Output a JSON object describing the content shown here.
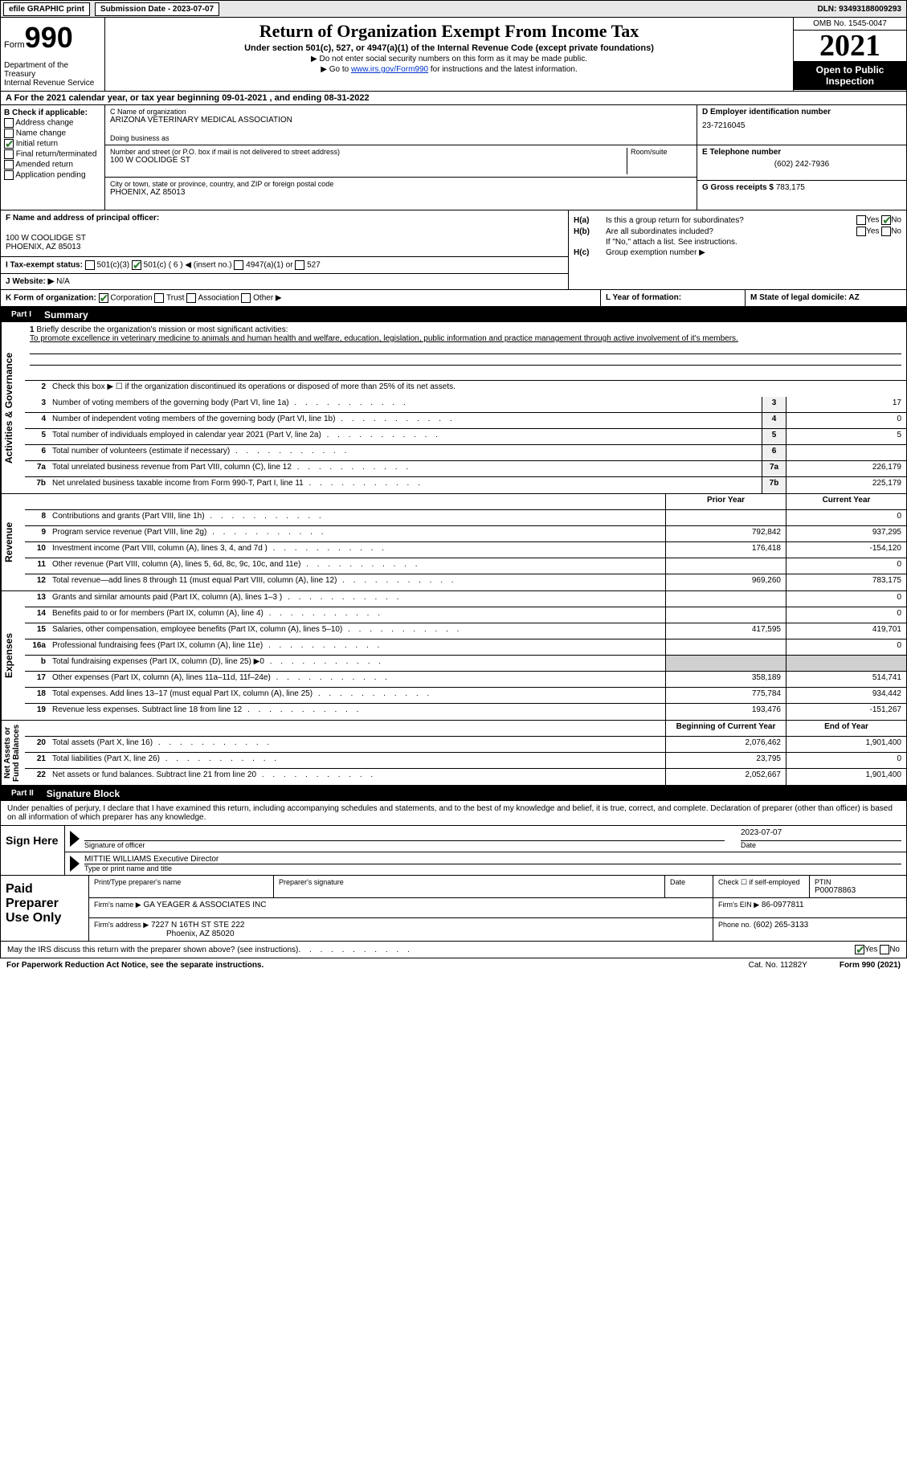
{
  "topbar": {
    "efile": "efile GRAPHIC print",
    "submission": "Submission Date - 2023-07-07",
    "dln": "DLN: 93493188009293"
  },
  "header": {
    "form_word": "Form",
    "form_no": "990",
    "dept": "Department of the Treasury\nInternal Revenue Service",
    "title": "Return of Organization Exempt From Income Tax",
    "subtitle": "Under section 501(c), 527, or 4947(a)(1) of the Internal Revenue Code (except private foundations)",
    "line1": "▶ Do not enter social security numbers on this form as it may be made public.",
    "line2_pre": "▶ Go to ",
    "line2_link": "www.irs.gov/Form990",
    "line2_post": " for instructions and the latest information.",
    "omb": "OMB No. 1545-0047",
    "year": "2021",
    "otp": "Open to Public Inspection"
  },
  "a": {
    "text": "A For the 2021 calendar year, or tax year beginning 09-01-2021   , and ending 08-31-2022"
  },
  "b": {
    "label": "B Check if applicable:",
    "opts": [
      "Address change",
      "Name change",
      "Initial return",
      "Final return/terminated",
      "Amended return",
      "Application pending"
    ],
    "checked_idx": 2
  },
  "c": {
    "name_lbl": "C Name of organization",
    "name": "ARIZONA VETERINARY MEDICAL ASSOCIATION",
    "dba_lbl": "Doing business as",
    "dba": "",
    "addr_lbl": "Number and street (or P.O. box if mail is not delivered to street address)",
    "room_lbl": "Room/suite",
    "addr": "100 W COOLIDGE ST",
    "city_lbl": "City or town, state or province, country, and ZIP or foreign postal code",
    "city": "PHOENIX, AZ  85013"
  },
  "d": {
    "ein_lbl": "D Employer identification number",
    "ein": "23-7216045",
    "tel_lbl": "E Telephone number",
    "tel": "(602) 242-7936",
    "gross_lbl": "G Gross receipts $",
    "gross": "783,175"
  },
  "f": {
    "lbl": "F Name and address of principal officer:",
    "line1": "100 W COOLIDGE ST",
    "line2": "PHOENIX, AZ  85013"
  },
  "h": {
    "a_lbl": "H(a)",
    "a_text": "Is this a group return for subordinates?",
    "b_lbl": "H(b)",
    "b_text": "Are all subordinates included?",
    "note": "If \"No,\" attach a list. See instructions.",
    "c_lbl": "H(c)",
    "c_text": "Group exemption number ▶",
    "yes": "Yes",
    "no": "No"
  },
  "i": {
    "lbl": "I   Tax-exempt status:",
    "o1": "501(c)(3)",
    "o2": "501(c) ( 6 ) ◀ (insert no.)",
    "o3": "4947(a)(1) or",
    "o4": "527"
  },
  "j": {
    "lbl": "J   Website: ▶",
    "val": "N/A"
  },
  "k": {
    "lbl": "K Form of organization:",
    "o1": "Corporation",
    "o2": "Trust",
    "o3": "Association",
    "o4": "Other ▶"
  },
  "l": {
    "lbl": "L Year of formation:",
    "val": ""
  },
  "m": {
    "lbl": "M State of legal domicile: AZ"
  },
  "part1": {
    "label": "Part I",
    "title": "Summary"
  },
  "summary": {
    "l1_lbl": "Briefly describe the organization's mission or most significant activities:",
    "l1_text": "To promote excellence in veterinary medicine to animals and human health and welfare, education, legislation, public information and practice management through active involvement of it's members.",
    "l2": "Check this box ▶ ☐ if the organization discontinued its operations or disposed of more than 25% of its net assets.",
    "rows_a": [
      {
        "n": "3",
        "t": "Number of voting members of the governing body (Part VI, line 1a)",
        "box": "3",
        "v": "17"
      },
      {
        "n": "4",
        "t": "Number of independent voting members of the governing body (Part VI, line 1b)",
        "box": "4",
        "v": "0"
      },
      {
        "n": "5",
        "t": "Total number of individuals employed in calendar year 2021 (Part V, line 2a)",
        "box": "5",
        "v": "5"
      },
      {
        "n": "6",
        "t": "Total number of volunteers (estimate if necessary)",
        "box": "6",
        "v": ""
      },
      {
        "n": "7a",
        "t": "Total unrelated business revenue from Part VIII, column (C), line 12",
        "box": "7a",
        "v": "226,179"
      },
      {
        "n": "7b",
        "t": "Net unrelated business taxable income from Form 990-T, Part I, line 11",
        "box": "7b",
        "v": "225,179"
      }
    ],
    "col_prior": "Prior Year",
    "col_curr": "Current Year",
    "revenue": [
      {
        "n": "8",
        "t": "Contributions and grants (Part VIII, line 1h)",
        "p": "",
        "c": "0"
      },
      {
        "n": "9",
        "t": "Program service revenue (Part VIII, line 2g)",
        "p": "792,842",
        "c": "937,295"
      },
      {
        "n": "10",
        "t": "Investment income (Part VIII, column (A), lines 3, 4, and 7d )",
        "p": "176,418",
        "c": "-154,120"
      },
      {
        "n": "11",
        "t": "Other revenue (Part VIII, column (A), lines 5, 6d, 8c, 9c, 10c, and 11e)",
        "p": "",
        "c": "0"
      },
      {
        "n": "12",
        "t": "Total revenue—add lines 8 through 11 (must equal Part VIII, column (A), line 12)",
        "p": "969,260",
        "c": "783,175"
      }
    ],
    "expenses": [
      {
        "n": "13",
        "t": "Grants and similar amounts paid (Part IX, column (A), lines 1–3 )",
        "p": "",
        "c": "0"
      },
      {
        "n": "14",
        "t": "Benefits paid to or for members (Part IX, column (A), line 4)",
        "p": "",
        "c": "0"
      },
      {
        "n": "15",
        "t": "Salaries, other compensation, employee benefits (Part IX, column (A), lines 5–10)",
        "p": "417,595",
        "c": "419,701"
      },
      {
        "n": "16a",
        "t": "Professional fundraising fees (Part IX, column (A), line 11e)",
        "p": "",
        "c": "0"
      },
      {
        "n": "b",
        "t": "Total fundraising expenses (Part IX, column (D), line 25) ▶0",
        "p": "SHADE",
        "c": "SHADE"
      },
      {
        "n": "17",
        "t": "Other expenses (Part IX, column (A), lines 11a–11d, 11f–24e)",
        "p": "358,189",
        "c": "514,741"
      },
      {
        "n": "18",
        "t": "Total expenses. Add lines 13–17 (must equal Part IX, column (A), line 25)",
        "p": "775,784",
        "c": "934,442"
      },
      {
        "n": "19",
        "t": "Revenue less expenses. Subtract line 18 from line 12",
        "p": "193,476",
        "c": "-151,267"
      }
    ],
    "col_beg": "Beginning of Current Year",
    "col_end": "End of Year",
    "netassets": [
      {
        "n": "20",
        "t": "Total assets (Part X, line 16)",
        "p": "2,076,462",
        "c": "1,901,400"
      },
      {
        "n": "21",
        "t": "Total liabilities (Part X, line 26)",
        "p": "23,795",
        "c": "0"
      },
      {
        "n": "22",
        "t": "Net assets or fund balances. Subtract line 21 from line 20",
        "p": "2,052,667",
        "c": "1,901,400"
      }
    ],
    "vtabs": {
      "ag": "Activities & Governance",
      "rev": "Revenue",
      "exp": "Expenses",
      "na": "Net Assets or\nFund Balances"
    }
  },
  "part2": {
    "label": "Part II",
    "title": "Signature Block"
  },
  "sig": {
    "intro": "Under penalties of perjury, I declare that I have examined this return, including accompanying schedules and statements, and to the best of my knowledge and belief, it is true, correct, and complete. Declaration of preparer (other than officer) is based on all information of which preparer has any knowledge.",
    "sign_here": "Sign Here",
    "sig_lbl": "Signature of officer",
    "date_lbl": "Date",
    "date": "2023-07-07",
    "name": "MITTIE WILLIAMS Executive Director",
    "name_lbl": "Type or print name and title"
  },
  "paid": {
    "lbl": "Paid Preparer Use Only",
    "h1": "Print/Type preparer's name",
    "h2": "Preparer's signature",
    "h3": "Date",
    "h4": "Check ☐ if self-employed",
    "h5_lbl": "PTIN",
    "h5": "P00078863",
    "firm_lbl": "Firm's name    ▶",
    "firm": "GA YEAGER & ASSOCIATES INC",
    "ein_lbl": "Firm's EIN ▶",
    "ein": "86-0977811",
    "addr_lbl": "Firm's address ▶",
    "addr1": "7227 N 16TH ST STE 222",
    "addr2": "Phoenix, AZ  85020",
    "phone_lbl": "Phone no.",
    "phone": "(602) 265-3133"
  },
  "may": {
    "text": "May the IRS discuss this return with the preparer shown above? (see instructions)",
    "yes": "Yes",
    "no": "No"
  },
  "footer": {
    "left": "For Paperwork Reduction Act Notice, see the separate instructions.",
    "cat": "Cat. No. 11282Y",
    "right": "Form 990 (2021)"
  },
  "colors": {
    "check_green": "#2a7a2a",
    "link_blue": "#0033cc",
    "shade": "#d0d0d0"
  }
}
